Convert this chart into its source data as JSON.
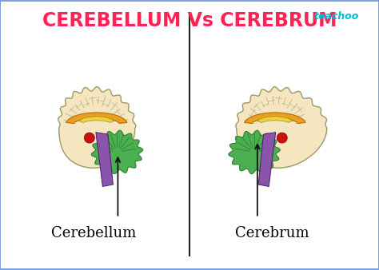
{
  "title": "CEREBELLUM Vs CEREBRUM",
  "title_color": "#FF2255",
  "teachoo_color": "#00BCD4",
  "teachoo_text": "teachoo",
  "bg_outer": "#7B9FE0",
  "bg_inner": "#FFFFFF",
  "label_left": "Cerebellum",
  "label_right": "Cerebrum",
  "label_fontsize": 13,
  "title_fontsize": 17,
  "brain_beige": "#F5E6C0",
  "brain_outline": "#999966",
  "corpus_callosum_orange": "#E8A020",
  "corpus_callosum_yellow": "#F0D040",
  "cerebellum_green": "#4CAF50",
  "brainstem_purple": "#8855AA",
  "red_spot": "#CC1111",
  "divider_color": "#222222",
  "arrow_color": "#111111"
}
